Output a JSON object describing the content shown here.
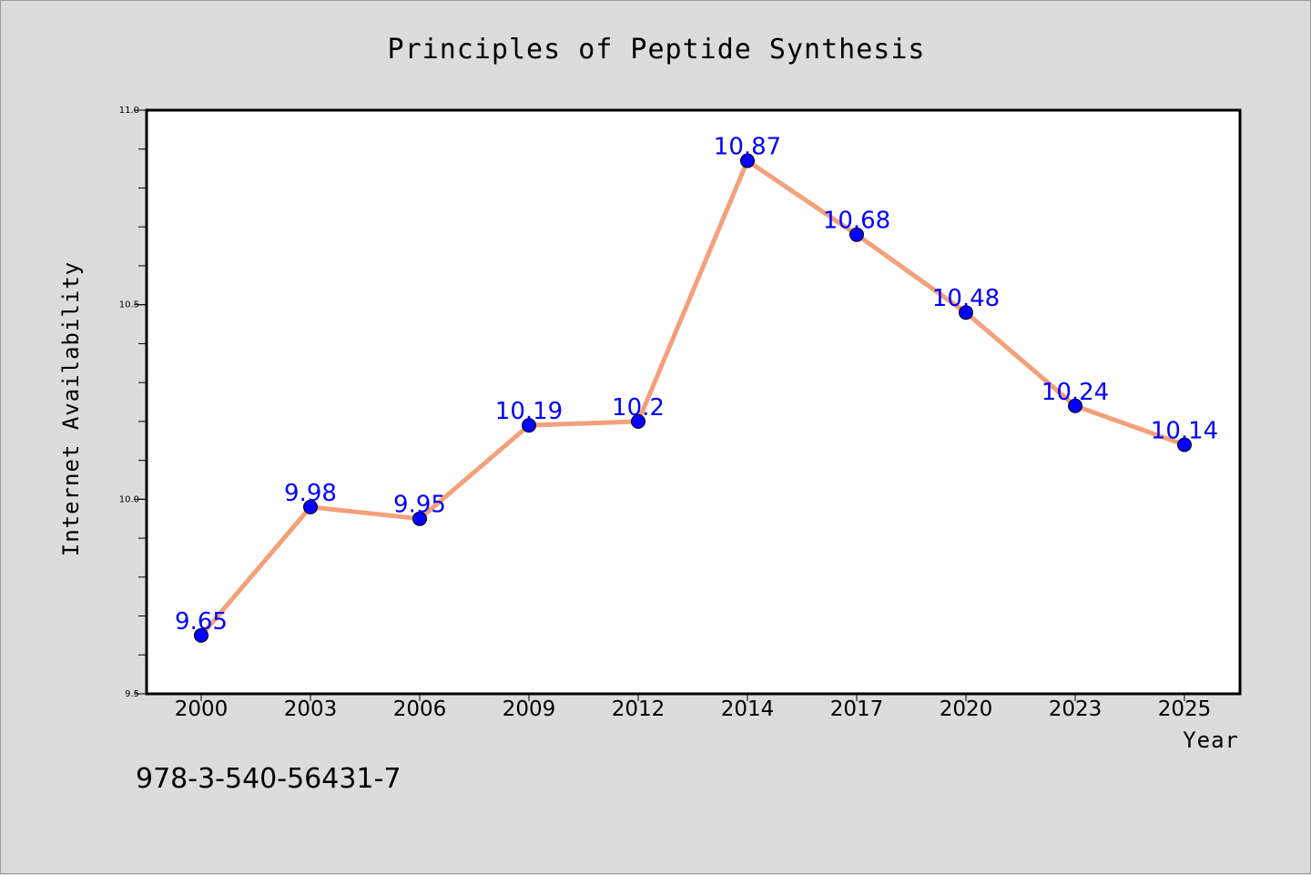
{
  "chart_data": {
    "type": "line",
    "title": "Principles of Peptide Synthesis",
    "xlabel": "Year",
    "ylabel": "Internet Availability",
    "categories": [
      "2000",
      "2003",
      "2006",
      "2009",
      "2012",
      "2014",
      "2017",
      "2020",
      "2023",
      "2025"
    ],
    "series": [
      {
        "values": [
          9.65,
          9.98,
          9.95,
          10.19,
          10.2,
          10.87,
          10.68,
          10.48,
          10.24,
          10.14
        ],
        "line_color": "#f4a07a",
        "marker_color": "#0000ff"
      }
    ],
    "data_labels": [
      "9.65",
      "9.98",
      "9.95",
      "10.19",
      "10.2",
      "10.87",
      "10.68",
      "10.48",
      "10.24",
      "10.14"
    ],
    "ylim": [
      9.5,
      11.0
    ],
    "yticks": [
      "9.5",
      "10.0",
      "10.5",
      "11.0"
    ],
    "grid": false,
    "legend": "none"
  },
  "footer": {
    "code": "978-3-540-56431-7"
  },
  "colors": {
    "background": "#dcdcdc",
    "plot_background": "#ffffff",
    "data_label": "#0000ff"
  }
}
